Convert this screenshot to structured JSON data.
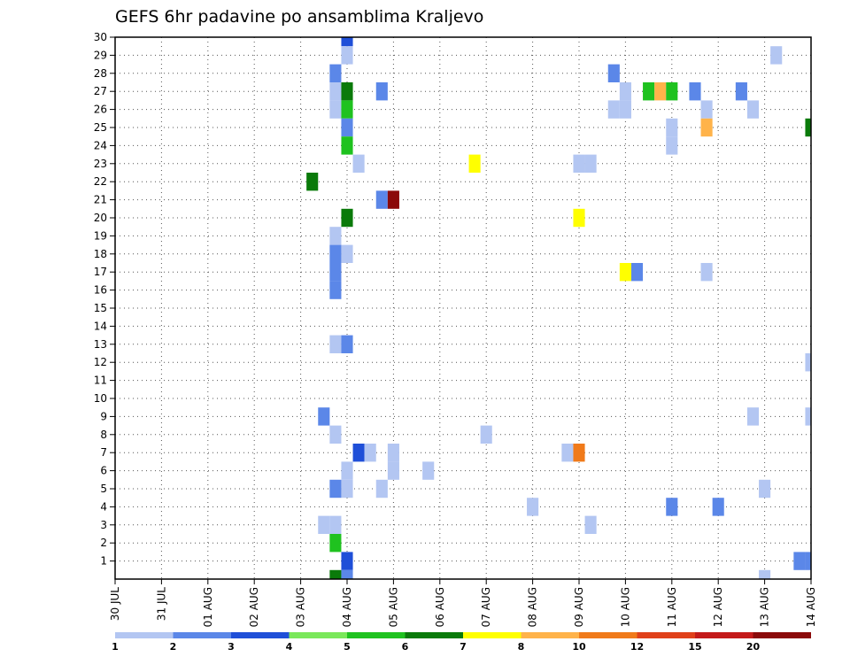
{
  "chart_data": {
    "type": "heatmap",
    "title": "GEFS 6hr padavine po ansamblima Kraljevo",
    "xlabel": "",
    "ylabel": "",
    "x_tick_labels": [
      "30 JUL",
      "31 JUL",
      "01 AUG",
      "02 AUG",
      "03 AUG",
      "04 AUG",
      "05 AUG",
      "06 AUG",
      "07 AUG",
      "08 AUG",
      "09 AUG",
      "10 AUG",
      "11 AUG",
      "12 AUG",
      "13 AUG",
      "14 AUG"
    ],
    "y_tick_labels": [
      "1",
      "2",
      "3",
      "4",
      "5",
      "6",
      "7",
      "8",
      "9",
      "10",
      "11",
      "12",
      "13",
      "14",
      "15",
      "16",
      "17",
      "18",
      "19",
      "20",
      "21",
      "22",
      "23",
      "24",
      "25",
      "26",
      "27",
      "28",
      "29",
      "30"
    ],
    "x_range_hours": [
      0,
      360
    ],
    "y_range_members": [
      0,
      30
    ],
    "grid": true,
    "colorbar": {
      "boundaries": [
        "1",
        "2",
        "3",
        "4",
        "5",
        "6",
        "7",
        "8",
        "10",
        "12",
        "15",
        "20"
      ],
      "colors": [
        "#b3c6f2",
        "#5b87e8",
        "#1f4fd8",
        "#7ae85a",
        "#1fc21f",
        "#0a7a0a",
        "#ffff00",
        "#ffb34a",
        "#f07a1a",
        "#e0401a",
        "#c41a1a",
        "#8b0a0a"
      ]
    },
    "cells": [
      {
        "h": 120,
        "m": 30,
        "v": 3
      },
      {
        "h": 120,
        "m": 29,
        "v": 1
      },
      {
        "h": 114,
        "m": 28,
        "v": 2
      },
      {
        "h": 114,
        "m": 27,
        "v": 1
      },
      {
        "h": 120,
        "m": 27,
        "v": 6
      },
      {
        "h": 138,
        "m": 27,
        "v": 2
      },
      {
        "h": 114,
        "m": 26,
        "v": 1
      },
      {
        "h": 120,
        "m": 26,
        "v": 5
      },
      {
        "h": 120,
        "m": 25,
        "v": 2
      },
      {
        "h": 120,
        "m": 24,
        "v": 5
      },
      {
        "h": 126,
        "m": 23,
        "v": 1
      },
      {
        "h": 102,
        "m": 22,
        "v": 6
      },
      {
        "h": 138,
        "m": 21,
        "v": 2
      },
      {
        "h": 144,
        "m": 21,
        "v": 20
      },
      {
        "h": 120,
        "m": 20,
        "v": 6
      },
      {
        "h": 114,
        "m": 19,
        "v": 1
      },
      {
        "h": 114,
        "m": 18,
        "v": 2
      },
      {
        "h": 120,
        "m": 18,
        "v": 1
      },
      {
        "h": 114,
        "m": 17,
        "v": 2
      },
      {
        "h": 114,
        "m": 16,
        "v": 2
      },
      {
        "h": 114,
        "m": 13,
        "v": 1
      },
      {
        "h": 120,
        "m": 13,
        "v": 2
      },
      {
        "h": 108,
        "m": 9,
        "v": 2
      },
      {
        "h": 114,
        "m": 8,
        "v": 1
      },
      {
        "h": 126,
        "m": 7,
        "v": 3
      },
      {
        "h": 132,
        "m": 7,
        "v": 1
      },
      {
        "h": 144,
        "m": 7,
        "v": 1
      },
      {
        "h": 120,
        "m": 6,
        "v": 1
      },
      {
        "h": 144,
        "m": 6,
        "v": 1
      },
      {
        "h": 162,
        "m": 6,
        "v": 1
      },
      {
        "h": 114,
        "m": 5,
        "v": 2
      },
      {
        "h": 120,
        "m": 5,
        "v": 1
      },
      {
        "h": 138,
        "m": 5,
        "v": 1
      },
      {
        "h": 108,
        "m": 3,
        "v": 1
      },
      {
        "h": 114,
        "m": 3,
        "v": 1
      },
      {
        "h": 114,
        "m": 2,
        "v": 5
      },
      {
        "h": 120,
        "m": 1,
        "v": 3
      },
      {
        "h": 114,
        "m": 0,
        "v": 6
      },
      {
        "h": 120,
        "m": 0,
        "v": 2
      },
      {
        "h": 186,
        "m": 23,
        "v": 7
      },
      {
        "h": 192,
        "m": 8,
        "v": 1
      },
      {
        "h": 216,
        "m": 4,
        "v": 1
      },
      {
        "h": 234,
        "m": 7,
        "v": 1
      },
      {
        "h": 240,
        "m": 7,
        "v": 10
      },
      {
        "h": 240,
        "m": 23,
        "v": 1
      },
      {
        "h": 246,
        "m": 23,
        "v": 1
      },
      {
        "h": 240,
        "m": 20,
        "v": 7
      },
      {
        "h": 246,
        "m": 3,
        "v": 1
      },
      {
        "h": 258,
        "m": 28,
        "v": 2
      },
      {
        "h": 264,
        "m": 27,
        "v": 1
      },
      {
        "h": 258,
        "m": 26,
        "v": 1
      },
      {
        "h": 264,
        "m": 26,
        "v": 1
      },
      {
        "h": 264,
        "m": 17,
        "v": 7
      },
      {
        "h": 270,
        "m": 17,
        "v": 2
      },
      {
        "h": 276,
        "m": 27,
        "v": 5
      },
      {
        "h": 282,
        "m": 27,
        "v": 8
      },
      {
        "h": 288,
        "m": 27,
        "v": 5
      },
      {
        "h": 288,
        "m": 25,
        "v": 1
      },
      {
        "h": 288,
        "m": 24,
        "v": 1
      },
      {
        "h": 288,
        "m": 4,
        "v": 2
      },
      {
        "h": 300,
        "m": 27,
        "v": 2
      },
      {
        "h": 306,
        "m": 26,
        "v": 1
      },
      {
        "h": 306,
        "m": 25,
        "v": 8
      },
      {
        "h": 306,
        "m": 17,
        "v": 1
      },
      {
        "h": 312,
        "m": 4,
        "v": 2
      },
      {
        "h": 324,
        "m": 27,
        "v": 2
      },
      {
        "h": 330,
        "m": 26,
        "v": 1
      },
      {
        "h": 330,
        "m": 9,
        "v": 1
      },
      {
        "h": 336,
        "m": 5,
        "v": 1
      },
      {
        "h": 336,
        "m": 0,
        "v": 1
      },
      {
        "h": 342,
        "m": 29,
        "v": 1
      },
      {
        "h": 354,
        "m": 1,
        "v": 2
      },
      {
        "h": 360,
        "m": 1,
        "v": 2
      },
      {
        "h": 360,
        "m": 25,
        "v": 6
      },
      {
        "h": 360,
        "m": 12,
        "v": 1
      },
      {
        "h": 360,
        "m": 9,
        "v": 1
      }
    ]
  }
}
